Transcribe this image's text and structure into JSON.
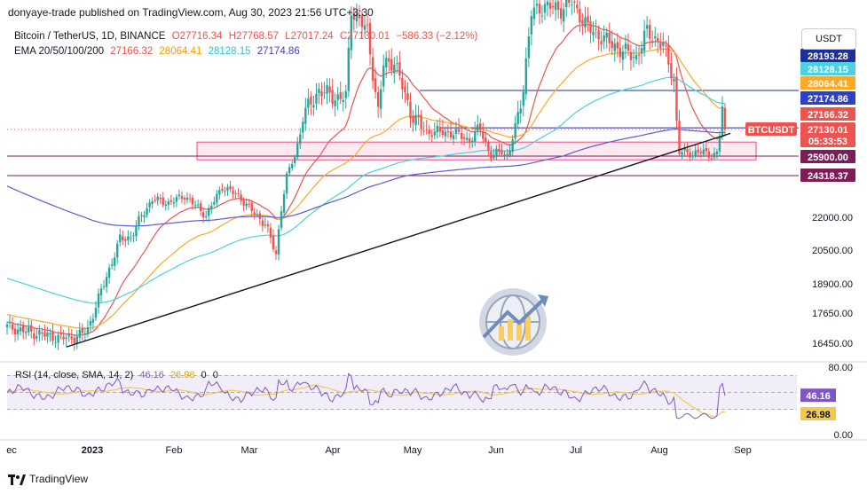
{
  "header": {
    "published": "donyaye-trade published on TradingView.com, Aug 30, 2023 21:56 UTC+3:30"
  },
  "symbol": {
    "name": "Bitcoin / TetherUS, 1D, BINANCE",
    "open": "O27716.34",
    "high": "H27768.57",
    "low": "L27017.24",
    "close": "C27130.01",
    "change": "−586.33 (−2.12%)"
  },
  "ema_legend": {
    "label": "EMA 20/50/100/200",
    "v20": "27166.32",
    "v50": "28064.41",
    "v100": "28128.15",
    "v200": "27174.86"
  },
  "currency": "USDT",
  "rsi_legend": {
    "label": "RSI (14, close, SMA, 14, 2)",
    "v1": "46.16",
    "v2": "26.98",
    "v3": "0",
    "v4": "0"
  },
  "footer": {
    "brand": "TradingView"
  },
  "colors": {
    "ema20": "#ef5350",
    "ema50": "#ffa726",
    "ema100": "#4dd0e1",
    "ema200": "#5b5bd6",
    "bull": "#26a69a",
    "bear": "#ef5350",
    "level": "#1e2f97",
    "zone": "#e91e63",
    "rsi": "#7e57c2",
    "rsi_sma": "#f2c94c"
  },
  "chart_data": {
    "type": "candlestick",
    "y_axis_ticks": [
      22000.0,
      20500.0,
      18900.0,
      17650.0,
      16450.0
    ],
    "x_axis_labels": [
      "ec",
      "2023",
      "Feb",
      "Mar",
      "Apr",
      "May",
      "Jun",
      "Jul",
      "Aug",
      "Sep"
    ],
    "price_tags": [
      {
        "label": "28193.28",
        "value": 28193.28,
        "color": "#1e2f97"
      },
      {
        "label": "28128.15",
        "value": 28128.15,
        "color": "#4dd0e1"
      },
      {
        "label": "28064.41",
        "value": 28064.41,
        "color": "#ffa726"
      },
      {
        "label": "27174.86",
        "value": 27174.86,
        "color": "#2f3fc9"
      },
      {
        "label": "27166.32",
        "value": 27166.32,
        "color": "#ef5350"
      },
      {
        "label": "27130.01",
        "value": 27130.01,
        "color": "#ef5350"
      },
      {
        "label": "05:33:53",
        "value": 26990,
        "color": "#ef5350"
      },
      {
        "label": "25900.00",
        "value": 25900.0,
        "color": "#7b1e57"
      },
      {
        "label": "24318.37",
        "value": 24318.37,
        "color": "#7b1e57"
      }
    ],
    "symbol_tag": "BTCUSDT",
    "horizontal_levels": [
      28193.28,
      27174.86,
      25900.0,
      24318.37
    ],
    "support_zone": [
      25600,
      26550
    ],
    "trendline": {
      "from": [
        "2023-01-01",
        16300
      ],
      "to": [
        "2023-09-05",
        26950
      ]
    },
    "rsi_ticks": [
      80.0,
      0.0
    ],
    "rsi_band": [
      30,
      70
    ],
    "rsi_current": 46.16,
    "rsi_sma_current": 26.98,
    "series": [
      {
        "name": "EMA 20",
        "last": 27166.32
      },
      {
        "name": "EMA 50",
        "last": 28064.41
      },
      {
        "name": "EMA 100",
        "last": 28128.15
      },
      {
        "name": "EMA 200",
        "last": 27174.86
      }
    ]
  }
}
